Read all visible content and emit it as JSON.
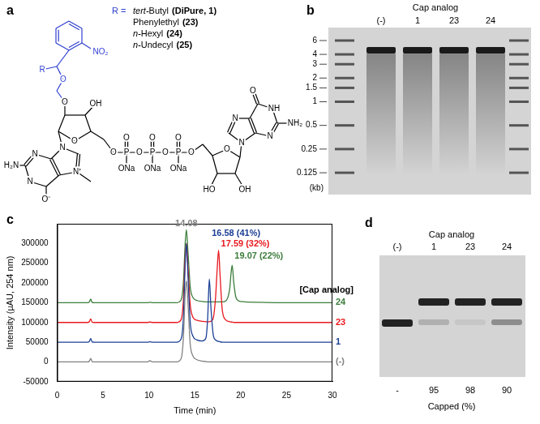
{
  "panel_a": {
    "label": "a",
    "r_prefix": "R =",
    "substituents": [
      {
        "name": "tert-Butyl",
        "ref": "(DiPure, 1)"
      },
      {
        "name": "Phenylethyl",
        "ref": "(23)"
      },
      {
        "name": "n-Hexyl",
        "ref": "(24)"
      },
      {
        "name": "n-Undecyl",
        "ref": "(25)"
      }
    ],
    "structure_labels": [
      "NO₂",
      "R",
      "O",
      "O",
      "OH",
      "O",
      "N",
      "N⁺",
      "N",
      "N",
      "H₂N",
      "O⁻",
      "O",
      "P",
      "O",
      "P",
      "O",
      "P",
      "O",
      "O",
      "O",
      "O",
      "ONa",
      "ONa",
      "ONa",
      "O",
      "HO",
      "OH",
      "N",
      "N",
      "N",
      "NH",
      "O",
      "NH₂"
    ]
  },
  "panel_b": {
    "label": "b",
    "title": "Cap analog",
    "lanes": [
      "(-)",
      "1",
      "23",
      "24"
    ],
    "ladder_kb": [
      6,
      4,
      3,
      2,
      1.5,
      1,
      0.5,
      0.25,
      0.125
    ],
    "unit": "(kb)",
    "band_kb": 4.5
  },
  "panel_c": {
    "label": "c"
  },
  "chart_data": {
    "type": "line",
    "x_label": "Time (min)",
    "y_label": "Intensity (µAU, 254 nm)",
    "xlim": [
      0,
      30
    ],
    "xticks": [
      0,
      5,
      10,
      15,
      20,
      25,
      30
    ],
    "ylim": [
      -50000,
      350000
    ],
    "yticks": [
      -50000,
      0,
      50000,
      100000,
      150000,
      200000,
      250000,
      300000
    ],
    "grid": false,
    "x": [
      0,
      3.3,
      3.5,
      3.65,
      3.8,
      4.0,
      9.8,
      10.1,
      10.4,
      13.0,
      13.5,
      13.75,
      13.95,
      14.08,
      14.25,
      14.5,
      14.8,
      15.2,
      15.8,
      16.2,
      16.4,
      16.58,
      16.75,
      17.0,
      17.25,
      17.45,
      17.59,
      17.75,
      18.0,
      18.4,
      18.8,
      18.95,
      19.07,
      19.25,
      19.5,
      20.0,
      22.0,
      26.0,
      30.0
    ],
    "series": [
      {
        "name": "(-)",
        "color": "#808080",
        "values": [
          0,
          0,
          2000,
          9000,
          1000,
          0,
          0,
          3000,
          0,
          0,
          8000,
          60000,
          175000,
          205000,
          150000,
          45000,
          15000,
          6000,
          2000,
          1000,
          0,
          0,
          0,
          0,
          0,
          0,
          0,
          0,
          0,
          0,
          0,
          0,
          0,
          0,
          0,
          0,
          0,
          0,
          0
        ]
      },
      {
        "name": "1",
        "color": "#1c3f94",
        "values": [
          50000,
          50000,
          52000,
          59000,
          51000,
          50000,
          50000,
          51000,
          50000,
          50000,
          58000,
          110000,
          250000,
          300000,
          220000,
          100000,
          65000,
          56000,
          53000,
          60000,
          110000,
          210000,
          140000,
          70000,
          56000,
          53000,
          52000,
          51000,
          50000,
          50000,
          50000,
          50000,
          50000,
          50000,
          50000,
          50000,
          50000,
          50000,
          50000
        ]
      },
      {
        "name": "23",
        "color": "#e8191f",
        "values": [
          100000,
          100000,
          102000,
          109000,
          101000,
          100000,
          100000,
          101000,
          100000,
          100000,
          107000,
          155000,
          265000,
          300000,
          240000,
          145000,
          113000,
          106000,
          103000,
          102000,
          102000,
          102000,
          103000,
          110000,
          160000,
          240000,
          283000,
          220000,
          130000,
          106000,
          102000,
          101000,
          101000,
          100000,
          100000,
          100000,
          100000,
          100000,
          100000
        ]
      },
      {
        "name": "24",
        "color": "#3c7d3c",
        "values": [
          150000,
          150000,
          152000,
          159000,
          151000,
          150000,
          150000,
          151000,
          150000,
          150000,
          157000,
          200000,
          300000,
          335000,
          280000,
          190000,
          163000,
          156000,
          153000,
          152000,
          152000,
          152000,
          152000,
          152000,
          152000,
          152000,
          152000,
          152000,
          152000,
          155000,
          185000,
          225000,
          245000,
          200000,
          162000,
          153000,
          151000,
          150000,
          150000
        ]
      }
    ],
    "annotations": [
      {
        "text": "[Cap analog]"
      },
      {
        "text": "14.08",
        "x": 14.08,
        "y": 350000,
        "color": "#808080"
      },
      {
        "text": "16.58 (41%)",
        "x": 16.58,
        "y": 325000,
        "color": "#1c3f94"
      },
      {
        "text": "17.59 (32%)",
        "x": 17.59,
        "y": 298000,
        "color": "#e8191f"
      },
      {
        "text": "19.07 (22%)",
        "x": 19.07,
        "y": 268000,
        "color": "#3c7d3c"
      }
    ]
  },
  "panel_d": {
    "label": "d",
    "title": "Cap analog",
    "lanes": [
      "(-)",
      "1",
      "23",
      "24"
    ],
    "capped": [
      null,
      95,
      98,
      90
    ],
    "missing_label": "-",
    "capped_label": "Capped (%)"
  }
}
